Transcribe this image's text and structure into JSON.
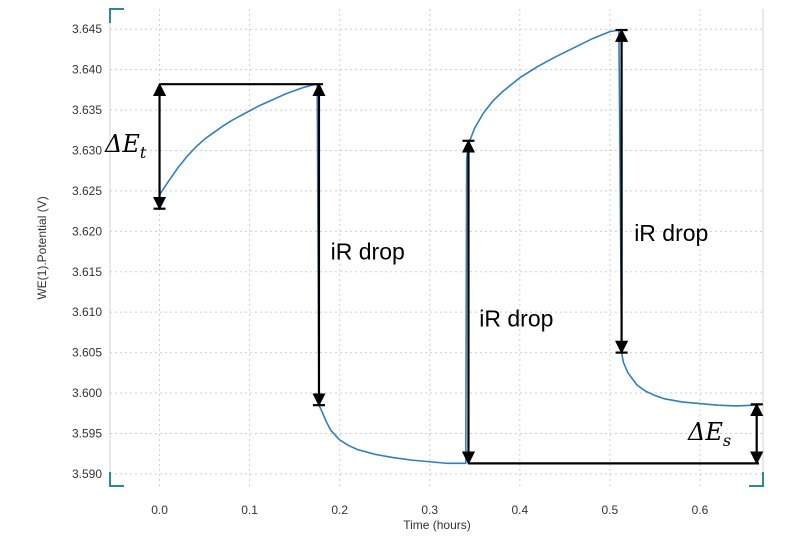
{
  "chart_data": {
    "type": "line",
    "xlabel": "Time (hours)",
    "ylabel": "WE(1).Potential (V)",
    "xlim": [
      -0.055,
      0.67
    ],
    "ylim": [
      3.5885,
      3.6475
    ],
    "x_ticks": [
      "0.0",
      "0.1",
      "0.2",
      "0.3",
      "0.4",
      "0.5",
      "0.6"
    ],
    "x_tick_values": [
      0.0,
      0.1,
      0.2,
      0.3,
      0.4,
      0.5,
      0.6
    ],
    "y_ticks": [
      "3.590",
      "3.595",
      "3.600",
      "3.605",
      "3.610",
      "3.615",
      "3.620",
      "3.625",
      "3.630",
      "3.635",
      "3.640",
      "3.645"
    ],
    "y_tick_values": [
      3.59,
      3.595,
      3.6,
      3.605,
      3.61,
      3.615,
      3.62,
      3.625,
      3.63,
      3.635,
      3.64,
      3.645
    ],
    "grid": true,
    "series": [
      {
        "color": "#2f7fc1",
        "x": [
          0.0,
          0.01,
          0.02,
          0.03,
          0.04,
          0.05,
          0.06,
          0.07,
          0.08,
          0.09,
          0.1,
          0.11,
          0.12,
          0.13,
          0.14,
          0.15,
          0.16,
          0.17,
          0.175,
          0.177,
          0.18,
          0.185,
          0.19,
          0.2,
          0.21,
          0.22,
          0.23,
          0.24,
          0.26,
          0.28,
          0.3,
          0.32,
          0.34,
          0.341,
          0.343,
          0.35,
          0.36,
          0.37,
          0.38,
          0.39,
          0.4,
          0.42,
          0.44,
          0.46,
          0.48,
          0.5,
          0.51,
          0.513,
          0.515,
          0.52,
          0.53,
          0.54,
          0.55,
          0.56,
          0.58,
          0.6,
          0.62,
          0.64,
          0.66,
          0.67
        ],
        "y": [
          3.6245,
          3.6262,
          3.6278,
          3.6292,
          3.6304,
          3.6314,
          3.6322,
          3.633,
          3.6337,
          3.6343,
          3.6349,
          3.6355,
          3.636,
          3.6365,
          3.637,
          3.6374,
          3.6378,
          3.6381,
          3.6382,
          3.5985,
          3.5978,
          3.5965,
          3.5954,
          3.5942,
          3.5935,
          3.593,
          3.5927,
          3.5924,
          3.592,
          3.5917,
          3.5915,
          3.5913,
          3.5913,
          3.629,
          3.6308,
          3.6328,
          3.6347,
          3.6361,
          3.6372,
          3.6381,
          3.639,
          3.6404,
          3.6416,
          3.6427,
          3.6438,
          3.6447,
          3.6449,
          3.605,
          3.6038,
          3.6025,
          3.601,
          3.6002,
          3.5997,
          3.5993,
          3.5989,
          3.5987,
          3.5985,
          3.5984,
          3.5985,
          3.5986
        ]
      }
    ],
    "annotations": [
      {
        "text": "iR drop",
        "x": 0.19,
        "y": 3.6165
      },
      {
        "text": "iR drop",
        "x": 0.355,
        "y": 3.6082
      },
      {
        "text": "iR drop",
        "x": 0.527,
        "y": 3.6188
      }
    ],
    "delta_t": {
      "base": "ΔE",
      "sub": "t"
    },
    "delta_s": {
      "base": "ΔE",
      "sub": "s"
    },
    "bracket_t": {
      "x": 0.0,
      "y1": 3.6228,
      "y2": 3.6382,
      "top_x2": 0.177
    },
    "arrow_ir1": {
      "x": 0.177,
      "y1": 3.6382,
      "y2": 3.5985
    },
    "arrow_ir2": {
      "x": 0.343,
      "y1": 3.6312,
      "y2": 3.5913,
      "bottom_x2": 0.67
    },
    "arrow_ir3": {
      "x": 0.513,
      "y1": 3.6449,
      "y2": 3.605
    },
    "bracket_s": {
      "x": 0.663,
      "y1": 3.5913,
      "y2": 3.5986
    }
  }
}
